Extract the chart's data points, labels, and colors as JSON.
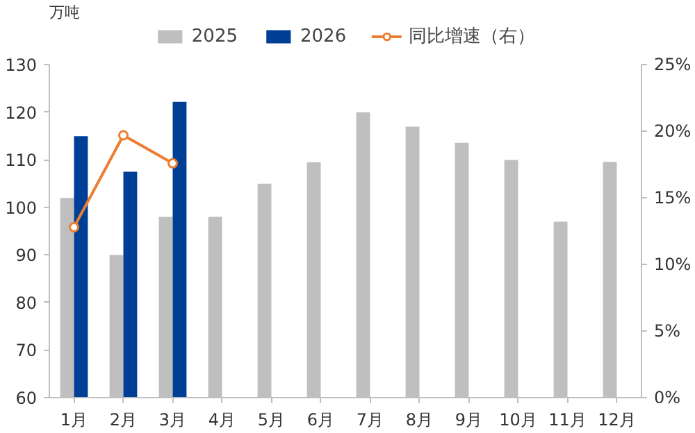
{
  "chart_data": {
    "type": "bar",
    "ylabel": "万吨",
    "categories": [
      "1月",
      "2月",
      "3月",
      "4月",
      "5月",
      "6月",
      "7月",
      "8月",
      "9月",
      "10月",
      "11月",
      "12月"
    ],
    "series": [
      {
        "name": "2025",
        "color": "#bfbfbf",
        "values": [
          102,
          90,
          98,
          98,
          105,
          109.5,
          120,
          117,
          113.6,
          110,
          97,
          109.6
        ]
      },
      {
        "name": "2026",
        "color": "#003f96",
        "values": [
          115,
          107.5,
          122.2,
          null,
          null,
          null,
          null,
          null,
          null,
          null,
          null,
          null
        ]
      },
      {
        "name": "同比增速（右）",
        "type": "line",
        "axis": "y2",
        "color": "#ed7d31",
        "marker": "circle",
        "values": [
          12.8,
          19.7,
          17.6,
          null,
          null,
          null,
          null,
          null,
          null,
          null,
          null,
          null
        ]
      }
    ],
    "ylim": [
      60,
      130
    ],
    "yticks": [
      60,
      70,
      80,
      90,
      100,
      110,
      120,
      130
    ],
    "y2lim": [
      0,
      25
    ],
    "y2ticks": [
      {
        "value": 0,
        "label": "0%"
      },
      {
        "value": 5,
        "label": "5%"
      },
      {
        "value": 10,
        "label": "10%"
      },
      {
        "value": 15,
        "label": "15%"
      },
      {
        "value": 20,
        "label": "20%"
      },
      {
        "value": 25,
        "label": "25%"
      }
    ],
    "grid": false,
    "legend": "top"
  }
}
